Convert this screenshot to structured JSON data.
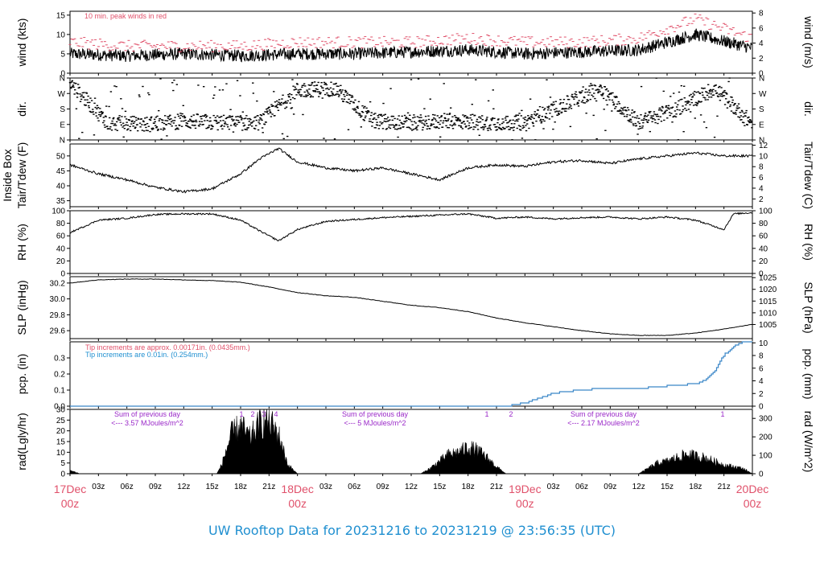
{
  "colors": {
    "peak_wind": "#e0506a",
    "note_red": "#e0506a",
    "note_blue": "#1f8fd0",
    "radiation_text": "#9a28c8",
    "precip_line": "#3a86c8",
    "caption": "#1f8fd0",
    "day_labels": "#e0506a"
  },
  "caption": "UW Rooftop Data for 20231216  to  20231219 @ 23:56:35  (UTC)",
  "x_axis": {
    "hour_ticks": [
      "03z",
      "06z",
      "09z",
      "12z",
      "15z",
      "18z",
      "21z",
      "03z",
      "06z",
      "09z",
      "12z",
      "15z",
      "18z",
      "21z",
      "03z",
      "06z",
      "09z",
      "12z",
      "15z",
      "18z",
      "21z"
    ],
    "day_labels": [
      {
        "date": "17Dec",
        "hour": "00z"
      },
      {
        "date": "18Dec",
        "hour": "00z"
      },
      {
        "date": "19Dec",
        "hour": "00z"
      },
      {
        "date": "20Dec",
        "hour": "00z"
      }
    ]
  },
  "chart_data": [
    {
      "type": "line",
      "panel": "wind",
      "ylabel_left": "wind (kts)",
      "ylabel_right": "wind (m/s)",
      "ylim_left": [
        0,
        16
      ],
      "yticks_left": [
        0,
        5,
        10,
        15
      ],
      "yticks_right": [
        0,
        2,
        4,
        6,
        8
      ],
      "annotation": "10 min. peak winds in red",
      "x_hours": [
        0,
        6,
        12,
        18,
        24,
        30,
        36,
        42,
        48,
        54,
        60,
        66,
        72
      ],
      "series": [
        {
          "values": [
            5,
            4.5,
            5,
            4.5,
            5,
            5,
            5.5,
            6,
            5,
            5.5,
            6,
            10,
            6.5
          ]
        },
        {
          "values": [
            8,
            7,
            7,
            7,
            8,
            8,
            8,
            9,
            8,
            8,
            9,
            14,
            9
          ]
        }
      ]
    },
    {
      "type": "scatter",
      "panel": "wind direction",
      "ylabel_left": "dir.",
      "ylabel_right": "dir.",
      "ytick_labels": [
        "N",
        "E",
        "S",
        "W",
        "N"
      ],
      "x_hours": [
        0,
        4,
        8,
        12,
        16,
        20,
        24,
        28,
        32,
        36,
        40,
        44,
        48,
        52,
        56,
        60,
        64,
        68,
        72
      ],
      "values": [
        330,
        100,
        90,
        110,
        100,
        100,
        290,
        300,
        110,
        100,
        110,
        100,
        100,
        200,
        300,
        100,
        180,
        300,
        95
      ]
    },
    {
      "type": "line",
      "panel": "inside box temperature",
      "ylabel_left": "Tair/Tdew (F)",
      "ylabel_left2": "Inside Box",
      "ylabel_right": "Tair/Tdew (C)",
      "ylim_left": [
        33,
        54
      ],
      "yticks_left": [
        35,
        40,
        45,
        50
      ],
      "yticks_right": [
        2,
        4,
        6,
        8,
        10,
        12
      ],
      "x_hours": [
        0,
        3,
        6,
        9,
        12,
        15,
        18,
        20,
        22,
        24,
        27,
        30,
        33,
        36,
        39,
        42,
        45,
        48,
        51,
        54,
        57,
        60,
        63,
        66,
        69,
        72
      ],
      "values": [
        47,
        44,
        42,
        39.5,
        38,
        39,
        44,
        49,
        52.5,
        48,
        46,
        45,
        46,
        44,
        42,
        46,
        47,
        46.5,
        48,
        48.5,
        47.5,
        49,
        50,
        51,
        50,
        50
      ]
    },
    {
      "type": "line",
      "panel": "relative humidity",
      "ylabel_left": "RH (%)",
      "ylabel_right": "RH (%)",
      "ylim_left": [
        0,
        100
      ],
      "yticks_left": [
        0,
        20,
        40,
        60,
        80,
        100
      ],
      "yticks_right": [
        0,
        20,
        40,
        60,
        80,
        100
      ],
      "x_hours": [
        0,
        3,
        6,
        9,
        12,
        15,
        18,
        20,
        21,
        22,
        24,
        27,
        30,
        33,
        36,
        39,
        42,
        45,
        48,
        51,
        54,
        57,
        60,
        63,
        66,
        69,
        70,
        72
      ],
      "values": [
        65,
        85,
        88,
        94,
        95,
        95,
        85,
        68,
        60,
        52,
        70,
        83,
        86,
        89,
        91,
        93,
        95,
        88,
        90,
        87,
        89,
        90,
        87,
        90,
        85,
        70,
        95,
        97
      ]
    },
    {
      "type": "line",
      "panel": "sea level pressure",
      "ylabel_left": "SLP (inHg)",
      "ylabel_right": "SLP (hPa)",
      "ylim_left": [
        29.5,
        30.28
      ],
      "yticks_left": [
        29.6,
        29.8,
        30.0,
        30.2
      ],
      "yticks_right": [
        1005,
        1010,
        1015,
        1020,
        1025
      ],
      "x_hours": [
        0,
        3,
        6,
        9,
        12,
        15,
        18,
        21,
        24,
        27,
        30,
        33,
        36,
        39,
        42,
        45,
        48,
        51,
        54,
        57,
        60,
        63,
        66,
        69,
        72
      ],
      "values": [
        30.2,
        30.24,
        30.25,
        30.25,
        30.24,
        30.23,
        30.21,
        30.15,
        30.08,
        30.04,
        30.02,
        29.97,
        29.92,
        29.89,
        29.84,
        29.76,
        29.7,
        29.65,
        29.6,
        29.56,
        29.54,
        29.54,
        29.57,
        29.62,
        29.68
      ]
    },
    {
      "type": "line",
      "panel": "precipitation",
      "ylabel_left": "pcp. (in)",
      "ylabel_right": "pcp. (mm)",
      "ylim_left": [
        0,
        0.4
      ],
      "yticks_left": [
        0.0,
        0.1,
        0.2,
        0.3
      ],
      "yticks_right": [
        0,
        2,
        4,
        6,
        8,
        10
      ],
      "annotation_red": "Tip increments are approx. 0.00171in. (0.0435mm.)",
      "annotation_blue": "Tip increments are 0.01in. (0.254mm.)",
      "x_hours": [
        0,
        46,
        47,
        48,
        50,
        51,
        52,
        56,
        60,
        62,
        64,
        66,
        67,
        68,
        69,
        70,
        71,
        72
      ],
      "values": [
        0,
        0,
        0.01,
        0.02,
        0.06,
        0.08,
        0.09,
        0.11,
        0.11,
        0.12,
        0.13,
        0.14,
        0.16,
        0.22,
        0.32,
        0.37,
        0.4,
        0.4
      ]
    },
    {
      "type": "area",
      "panel": "solar radiation",
      "ylabel_left": "rad(Lgly/hr)",
      "ylabel_right": "rad (W/m^2)",
      "ylim_left": [
        0,
        30
      ],
      "yticks_left": [
        0,
        5,
        10,
        15,
        20,
        25,
        30
      ],
      "yticks_right": [
        0,
        100,
        200,
        300
      ],
      "daily_notes": [
        {
          "line1": "Sum of previous day",
          "line2": "<--- 3.57 MJoules/m^2"
        },
        {
          "line1": "Sum of previous day",
          "line2": "<--- 5 MJoules/m^2"
        },
        {
          "line1": "Sum of previous day",
          "line2": "<--- 2.17 MJoules/m^2"
        }
      ],
      "markers": [
        "1",
        "2",
        "3",
        "4",
        "1",
        "2",
        "1"
      ],
      "x_hours": [
        0,
        0.5,
        1,
        15.5,
        16,
        17,
        18,
        19,
        20,
        21,
        22,
        23,
        24,
        37,
        38,
        39,
        40,
        41,
        42,
        43,
        44,
        45,
        46,
        60,
        61,
        62,
        63,
        64,
        65,
        66,
        67,
        68,
        69,
        70,
        71,
        72
      ],
      "values": [
        2,
        1,
        0,
        0,
        5,
        22,
        27,
        20,
        28,
        30,
        22,
        5,
        0,
        0,
        3,
        7,
        11,
        12,
        15,
        13,
        9,
        4,
        0,
        0,
        3,
        6,
        7,
        9,
        11,
        10,
        9,
        7,
        5,
        4,
        3,
        0
      ]
    }
  ]
}
